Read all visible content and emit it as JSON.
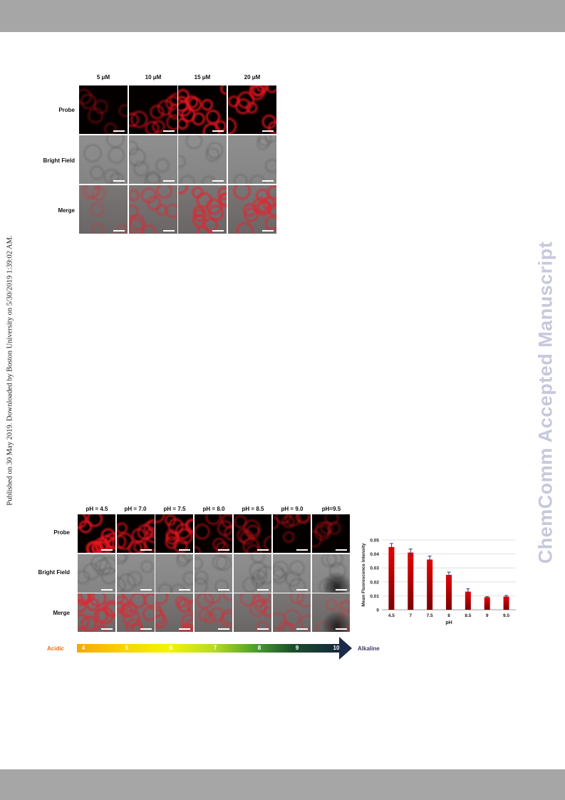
{
  "page": {
    "side_note": "Published on 30 May 2019. Downloaded by Boston University on 5/30/2019 1:39:02 AM.",
    "watermark": "ChemComm Accepted Manuscript"
  },
  "figure_top": {
    "columns": [
      "5 μM",
      "10 μM",
      "15 μM",
      "20 μM"
    ],
    "rows": [
      "Probe",
      "Bright Field",
      "Merge"
    ]
  },
  "figure_bottom": {
    "columns": [
      "pH = 4.5",
      "pH = 7.0",
      "pH = 7.5",
      "pH = 8.0",
      "pH = 8.5",
      "pH = 9.0",
      "pH=9.5"
    ],
    "rows": [
      "Probe",
      "Bright Field",
      "Merge"
    ],
    "ph_scale": {
      "left_label": "Acidic",
      "right_label": "Alkaline",
      "ticks": [
        "4",
        "5",
        "6",
        "7",
        "8",
        "9",
        "10"
      ]
    }
  },
  "chart_data": {
    "type": "bar",
    "categories": [
      "4.5",
      "7",
      "7.5",
      "8",
      "8.5",
      "9",
      "9.5"
    ],
    "values": [
      0.045,
      0.041,
      0.036,
      0.025,
      0.013,
      0.009,
      0.0095
    ],
    "errors": [
      0.0025,
      0.0025,
      0.0025,
      0.002,
      0.002,
      0.0005,
      0.0008
    ],
    "xlabel": "pH",
    "ylabel": "Mean Fluorescence Intensity",
    "ylim": [
      0,
      0.05
    ],
    "yticks": [
      "0",
      "0.01",
      "0.02",
      "0.03",
      "0.04",
      "0.05"
    ],
    "grid": true,
    "bar_color": "#d40000"
  }
}
